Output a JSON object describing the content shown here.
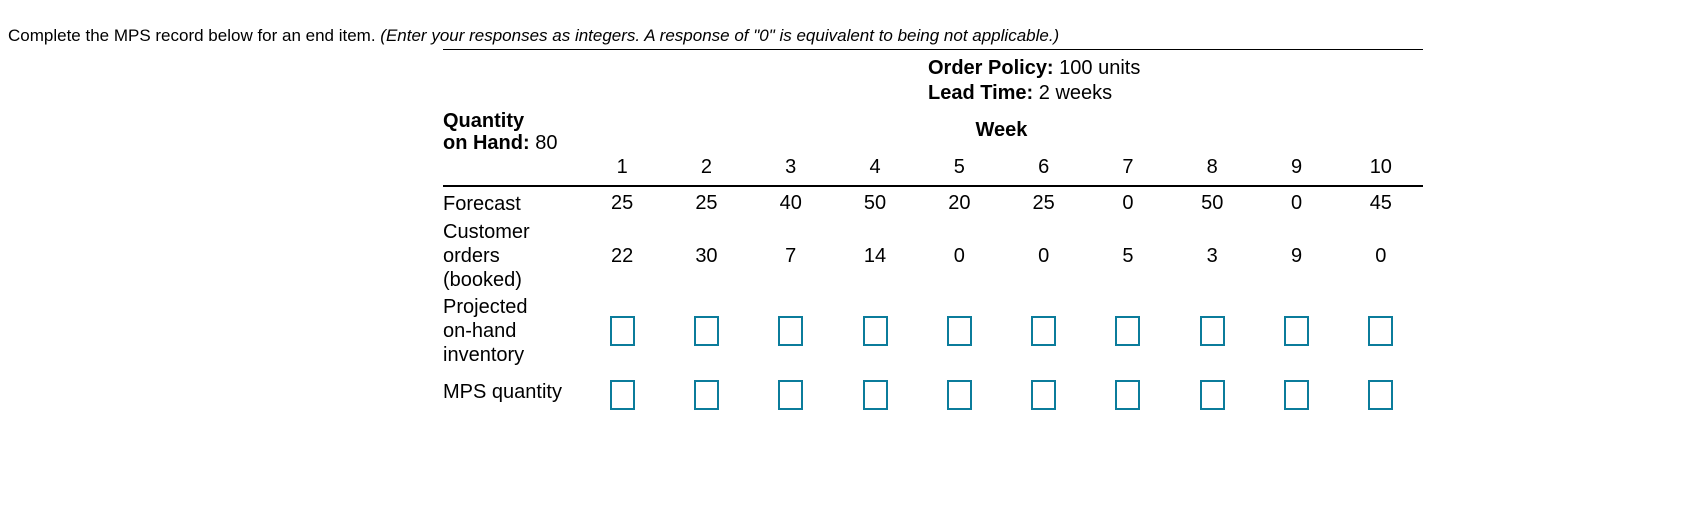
{
  "instruction": {
    "main": "Complete the MPS record below for an end item. ",
    "note": "(Enter your responses as integers. A response of \"0\" is equivalent to being not applicable.)"
  },
  "record": {
    "order_policy_label": "Order Policy:",
    "order_policy_value": "100 units",
    "lead_time_label": "Lead Time:",
    "lead_time_value": "2 weeks",
    "quantity_on_hand": {
      "line1": "Quantity",
      "line2_label": "on Hand:",
      "value": "80"
    },
    "week_header": "Week",
    "weeks": [
      "1",
      "2",
      "3",
      "4",
      "5",
      "6",
      "7",
      "8",
      "9",
      "10"
    ],
    "forecast": {
      "label": "Forecast",
      "values": [
        "25",
        "25",
        "40",
        "50",
        "20",
        "25",
        "0",
        "50",
        "0",
        "45"
      ]
    },
    "customer_orders": {
      "label_lines": [
        "Customer",
        "orders",
        "(booked)"
      ],
      "values": [
        "22",
        "30",
        "7",
        "14",
        "0",
        "0",
        "5",
        "3",
        "9",
        "0"
      ]
    },
    "projected_inventory": {
      "label_lines": [
        "Projected",
        "on-hand",
        "inventory"
      ],
      "input_values": [
        "",
        "",
        "",
        "",
        "",
        "",
        "",
        "",
        "",
        ""
      ]
    },
    "mps_quantity": {
      "label": "MPS quantity",
      "input_values": [
        "",
        "",
        "",
        "",
        "",
        "",
        "",
        "",
        "",
        ""
      ]
    }
  },
  "colors": {
    "input_border": "#0b7c9b",
    "rule": "#000000",
    "text": "#000000"
  }
}
